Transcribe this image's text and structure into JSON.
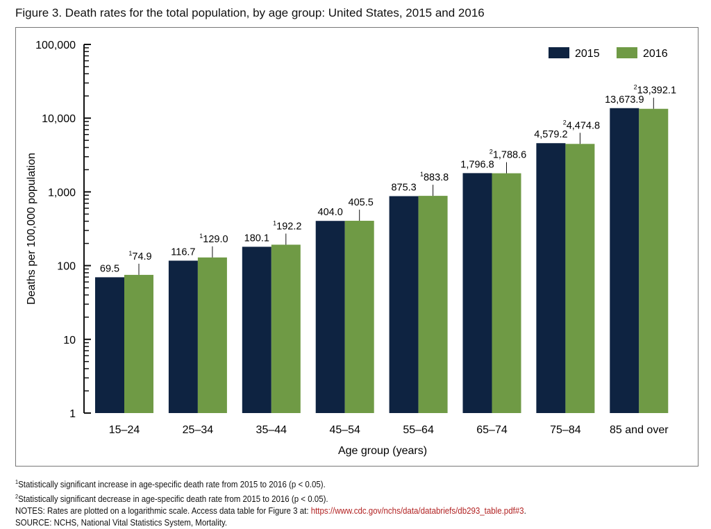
{
  "chart_data": {
    "type": "bar",
    "title": "Figure 3. Death rates for the total population, by age group: United States, 2015 and 2016",
    "xlabel": "Age group (years)",
    "ylabel": "Deaths per 100,000 population",
    "yscale": "log",
    "ylim": [
      1,
      100000
    ],
    "yticks": [
      "1",
      "10",
      "100",
      "1,000",
      "10,000",
      "100,000"
    ],
    "categories": [
      "15–24",
      "25–34",
      "35–44",
      "45–54",
      "55–64",
      "65–74",
      "75–84",
      "85 and over"
    ],
    "series": [
      {
        "name": "2015",
        "color": "#0e2341",
        "values": [
          69.5,
          116.7,
          180.1,
          404.0,
          875.3,
          1796.8,
          4579.2,
          13673.9
        ],
        "labels": [
          "69.5",
          "116.7",
          "180.1",
          "404.0",
          "875.3",
          "1,796.8",
          "4,579.2",
          "13,673.9"
        ]
      },
      {
        "name": "2016",
        "color": "#6f9a45",
        "values": [
          74.9,
          129.0,
          192.2,
          405.5,
          883.8,
          1788.6,
          4474.8,
          13392.1
        ],
        "labels": [
          "74.9",
          "129.0",
          "192.2",
          "405.5",
          "883.8",
          "1,788.6",
          "4,474.8",
          "13,392.1"
        ],
        "footnote_marks": [
          "1",
          "1",
          "1",
          "",
          "1",
          "2",
          "2",
          "2"
        ]
      }
    ],
    "legend": "top-right",
    "grid": false
  },
  "notes": {
    "fn1_mark": "1",
    "fn1": "Statistically significant increase in age-specific death rate from 2015 to 2016 (p < 0.05).",
    "fn2_mark": "2",
    "fn2": "Statistically significant decrease in age-specific death rate from 2015 to 2016 (p < 0.05).",
    "notes_text": "NOTES: Rates are plotted on a logarithmic scale. Access data table for Figure 3 at: ",
    "notes_link": "https://www.cdc.gov/nchs/data/databriefs/db293_table.pdf#3",
    "notes_end": ".",
    "source": "SOURCE: NCHS, National Vital Statistics System, Mortality."
  }
}
